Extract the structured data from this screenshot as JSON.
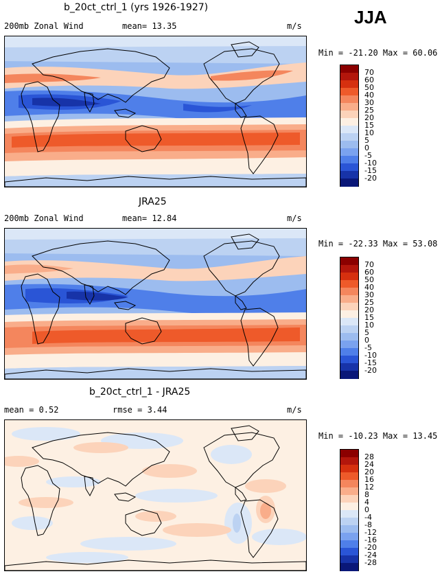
{
  "season": "JJA",
  "panels": [
    {
      "title": "b_20ct_ctrl_1 (yrs 1926-1927)",
      "left_label": "200mb Zonal Wind",
      "mid_label": "mean=  13.35",
      "units": "m/s",
      "minmax": "Min = -21.20 Max =  60.06",
      "colorbar": {
        "labels": [
          "70",
          "60",
          "50",
          "40",
          "30",
          "25",
          "20",
          "15",
          "10",
          "5",
          "0",
          "-5",
          "-10",
          "-15",
          "-20"
        ],
        "colors": [
          "#8b0000",
          "#b3160c",
          "#d6300f",
          "#ee5a2a",
          "#f4865d",
          "#f9ad8a",
          "#fcd3ba",
          "#fdf0e3",
          "#dbe7f7",
          "#bcd2f2",
          "#9cbcef",
          "#7aa2ef",
          "#4f7fe9",
          "#2a55d6",
          "#1733a8",
          "#0a1778"
        ]
      }
    },
    {
      "title": "JRA25",
      "left_label": "200mb Zonal Wind",
      "mid_label": "mean=  12.84",
      "units": "m/s",
      "minmax": "Min = -22.33 Max =  53.08",
      "colorbar": {
        "labels": [
          "70",
          "60",
          "50",
          "40",
          "30",
          "25",
          "20",
          "15",
          "10",
          "5",
          "0",
          "-5",
          "-10",
          "-15",
          "-20"
        ],
        "colors": [
          "#8b0000",
          "#b3160c",
          "#d6300f",
          "#ee5a2a",
          "#f4865d",
          "#f9ad8a",
          "#fcd3ba",
          "#fdf0e3",
          "#dbe7f7",
          "#bcd2f2",
          "#9cbcef",
          "#7aa2ef",
          "#4f7fe9",
          "#2a55d6",
          "#1733a8",
          "#0a1778"
        ]
      }
    },
    {
      "title": "b_20ct_ctrl_1 - JRA25",
      "left_label": "mean =    0.52",
      "mid_label": "rmse =    3.44",
      "units": "m/s",
      "minmax": "Min = -10.23 Max =  13.45",
      "colorbar": {
        "labels": [
          "28",
          "24",
          "20",
          "16",
          "12",
          "8",
          "4",
          "0",
          "-4",
          "-8",
          "-12",
          "-16",
          "-20",
          "-24",
          "-28"
        ],
        "colors": [
          "#8b0000",
          "#b3160c",
          "#d6300f",
          "#ee5a2a",
          "#f4865d",
          "#f9ad8a",
          "#fcd3ba",
          "#fdf0e3",
          "#dbe7f7",
          "#bcd2f2",
          "#9cbcef",
          "#7aa2ef",
          "#4f7fe9",
          "#2a55d6",
          "#1733a8",
          "#0a1778"
        ]
      }
    }
  ]
}
